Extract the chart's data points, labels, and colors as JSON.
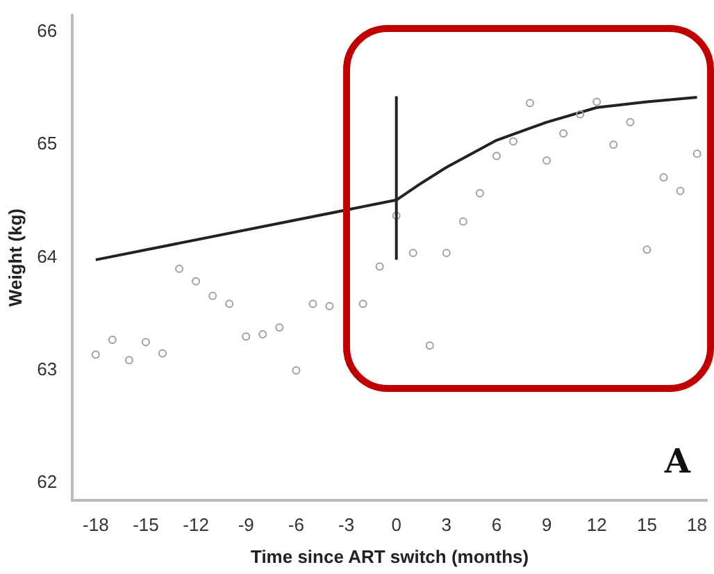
{
  "chart_data": {
    "type": "scatter",
    "xlabel": "Time since ART switch (months)",
    "ylabel": "Weight (kg)",
    "annotations": [
      "A"
    ],
    "series": [
      {
        "color": "#a0a0a0",
        "marker": "circle",
        "x": [
          -18,
          -17,
          -16,
          -15,
          -14,
          -13,
          -12,
          -11,
          -10,
          -9,
          -8,
          -7,
          -6,
          -5,
          -4,
          -2,
          -1,
          0,
          1,
          2,
          3,
          4,
          5,
          6,
          7,
          8,
          9,
          10,
          11,
          12,
          13,
          14,
          15,
          16,
          17,
          18
        ],
        "values": [
          63.14,
          63.27,
          63.09,
          63.25,
          63.15,
          63.9,
          63.79,
          63.66,
          63.59,
          63.3,
          63.32,
          63.38,
          63.0,
          63.59,
          63.57,
          63.59,
          63.92,
          64.37,
          64.04,
          63.22,
          64.04,
          64.32,
          64.57,
          64.9,
          65.03,
          65.37,
          64.86,
          65.1,
          65.27,
          65.38,
          65.0,
          65.2,
          64.07,
          64.71,
          64.59,
          64.92
        ]
      },
      {
        "type": "line",
        "color": "#222222",
        "marker": "none",
        "line_style": "solid",
        "x": [
          -18,
          0,
          1.5,
          3,
          6,
          9,
          12,
          15,
          18
        ],
        "values": [
          63.98,
          64.51,
          64.66,
          64.8,
          65.04,
          65.2,
          65.33,
          65.38,
          65.42
        ],
        "errors": [
          null,
          [
            63.98,
            65.43
          ],
          null,
          null,
          null,
          null,
          null,
          null,
          null
        ]
      }
    ],
    "xlim": [
      -19.4,
      18.6
    ],
    "xticks": [
      -18,
      -15,
      -12,
      -9,
      -6,
      -3,
      0,
      3,
      6,
      9,
      12,
      15,
      18
    ],
    "ylim": [
      61.85,
      66.15
    ],
    "yticks": [
      62,
      63,
      64,
      65,
      66
    ],
    "grid": false,
    "legend": false
  }
}
